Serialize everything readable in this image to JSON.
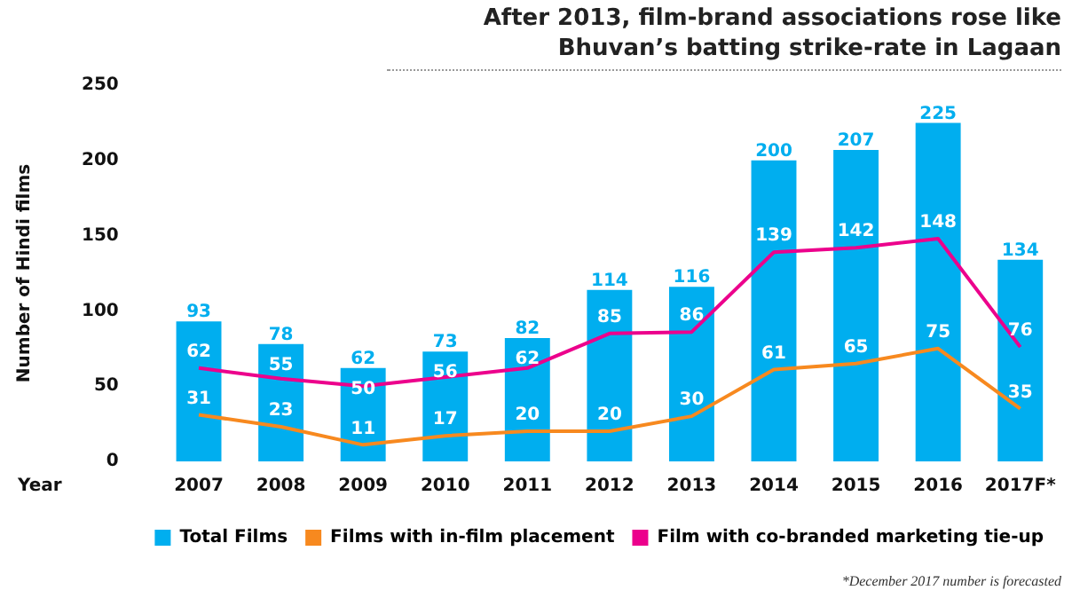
{
  "chart_data": {
    "type": "bar",
    "title": "After 2013, film-brand associations rose like Bhuvan’s batting strike-rate in Lagaan",
    "xlabel": "Year",
    "ylabel": "Number of Hindi films",
    "categories": [
      "2007",
      "2008",
      "2009",
      "2010",
      "2011",
      "2012",
      "2013",
      "2014",
      "2015",
      "2016",
      "2017F*"
    ],
    "series": [
      {
        "name": "Total Films",
        "color": "#00aeef",
        "values": [
          93,
          78,
          62,
          73,
          82,
          114,
          116,
          200,
          207,
          225,
          134
        ]
      },
      {
        "name": "Films with in-film placement",
        "type": "line",
        "color": "#f7891f",
        "values": [
          31,
          23,
          11,
          17,
          20,
          20,
          30,
          61,
          65,
          75,
          35
        ]
      },
      {
        "name": "Film with co-branded marketing tie-up",
        "type": "line",
        "color": "#ec008c",
        "values": [
          62,
          55,
          50,
          56,
          62,
          85,
          86,
          139,
          142,
          148,
          76
        ]
      }
    ],
    "ylim": [
      0,
      250
    ],
    "yticks": [
      0,
      50,
      100,
      150,
      200,
      250
    ],
    "grid": false,
    "legend": "bottom right",
    "marker": "none",
    "line_style": "solid",
    "data_labels": true,
    "annotations": [
      "*December 2017 number is forecasted"
    ]
  }
}
